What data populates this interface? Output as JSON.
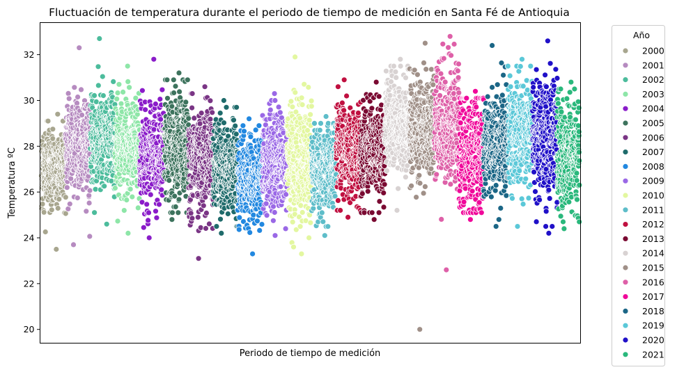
{
  "chart_data": {
    "type": "scatter",
    "title": "Fluctuación de temperatura durante el periodo de tiempo de medición en Santa Fé de Antioquia",
    "xlabel": "Periodo de tiempo de medición",
    "ylabel": "Temperatura ºC",
    "xlim": [
      0,
      22
    ],
    "ylim": [
      19.4,
      33.4
    ],
    "yticks": [
      "20",
      "22",
      "24",
      "26",
      "28",
      "30",
      "32"
    ],
    "legend": {
      "title": "Año",
      "placement": "outside-right"
    },
    "grid": false,
    "series": [
      {
        "name": "2000",
        "color": "#a8a68f",
        "x_range": [
          0.05,
          1.05
        ],
        "mean": 27.0,
        "sd": 0.85,
        "min": 23.5,
        "max": 29.4
      },
      {
        "name": "2001",
        "color": "#b68bc0",
        "x_range": [
          1.05,
          2.05
        ],
        "mean": 28.0,
        "sd": 1.05,
        "min": 23.7,
        "max": 32.3
      },
      {
        "name": "2002",
        "color": "#4cbc9c",
        "x_range": [
          2.05,
          3.05
        ],
        "mean": 28.3,
        "sd": 1.1,
        "min": 24.6,
        "max": 32.7
      },
      {
        "name": "2003",
        "color": "#8ee6a8",
        "x_range": [
          3.05,
          4.05
        ],
        "mean": 28.0,
        "sd": 1.0,
        "min": 24.2,
        "max": 31.5
      },
      {
        "name": "2004",
        "color": "#8a1cc9",
        "x_range": [
          4.05,
          5.05
        ],
        "mean": 27.6,
        "sd": 1.1,
        "min": 24.0,
        "max": 31.8
      },
      {
        "name": "2005",
        "color": "#3d735d",
        "x_range": [
          5.05,
          6.05
        ],
        "mean": 28.0,
        "sd": 1.2,
        "min": 24.8,
        "max": 31.2
      },
      {
        "name": "2006",
        "color": "#7a3585",
        "x_range": [
          6.05,
          7.05
        ],
        "mean": 27.4,
        "sd": 1.1,
        "min": 23.1,
        "max": 30.6
      },
      {
        "name": "2007",
        "color": "#1f6b6b",
        "x_range": [
          7.05,
          8.05
        ],
        "mean": 27.1,
        "sd": 1.0,
        "min": 24.2,
        "max": 30.0
      },
      {
        "name": "2008",
        "color": "#2288e0",
        "x_range": [
          8.05,
          9.05
        ],
        "mean": 26.6,
        "sd": 0.9,
        "min": 23.3,
        "max": 29.2
      },
      {
        "name": "2009",
        "color": "#9a68e6",
        "x_range": [
          9.05,
          10.05
        ],
        "mean": 27.3,
        "sd": 1.0,
        "min": 24.1,
        "max": 30.3
      },
      {
        "name": "2010",
        "color": "#e3f7a0",
        "x_range": [
          10.05,
          11.05
        ],
        "mean": 27.4,
        "sd": 1.3,
        "min": 23.3,
        "max": 31.9
      },
      {
        "name": "2011",
        "color": "#5ebdc9",
        "x_range": [
          11.05,
          12.05
        ],
        "mean": 27.0,
        "sd": 0.9,
        "min": 24.1,
        "max": 29.3
      },
      {
        "name": "2012",
        "color": "#c01040",
        "x_range": [
          12.05,
          13.05
        ],
        "mean": 27.8,
        "sd": 1.0,
        "min": 24.9,
        "max": 30.9
      },
      {
        "name": "2013",
        "color": "#7a0a32",
        "x_range": [
          13.05,
          14.05
        ],
        "mean": 27.8,
        "sd": 1.0,
        "min": 24.8,
        "max": 30.8
      },
      {
        "name": "2014",
        "color": "#d8d2d2",
        "x_range": [
          14.05,
          15.05
        ],
        "mean": 29.0,
        "sd": 1.0,
        "min": 25.2,
        "max": 31.8
      },
      {
        "name": "2015",
        "color": "#a09088",
        "x_range": [
          15.05,
          16.05
        ],
        "mean": 28.8,
        "sd": 1.1,
        "min": 20.0,
        "max": 32.5
      },
      {
        "name": "2016",
        "color": "#de60a8",
        "x_range": [
          16.05,
          17.05
        ],
        "mean": 29.0,
        "sd": 1.3,
        "min": 22.6,
        "max": 32.8
      },
      {
        "name": "2017",
        "color": "#f0089a",
        "x_range": [
          17.05,
          18.05
        ],
        "mean": 27.6,
        "sd": 1.4,
        "min": 24.8,
        "max": 30.4
      },
      {
        "name": "2018",
        "color": "#1b6686",
        "x_range": [
          18.05,
          19.05
        ],
        "mean": 28.0,
        "sd": 1.1,
        "min": 24.5,
        "max": 32.4
      },
      {
        "name": "2019",
        "color": "#5bc8d8",
        "x_range": [
          19.05,
          20.05
        ],
        "mean": 28.6,
        "sd": 1.2,
        "min": 24.5,
        "max": 31.8
      },
      {
        "name": "2020",
        "color": "#2010c8",
        "x_range": [
          20.05,
          21.05
        ],
        "mean": 28.3,
        "sd": 1.3,
        "min": 24.2,
        "max": 32.6
      },
      {
        "name": "2021",
        "color": "#2ab87c",
        "x_range": [
          21.05,
          21.95
        ],
        "mean": 27.6,
        "sd": 1.2,
        "min": 24.4,
        "max": 30.8
      }
    ]
  }
}
